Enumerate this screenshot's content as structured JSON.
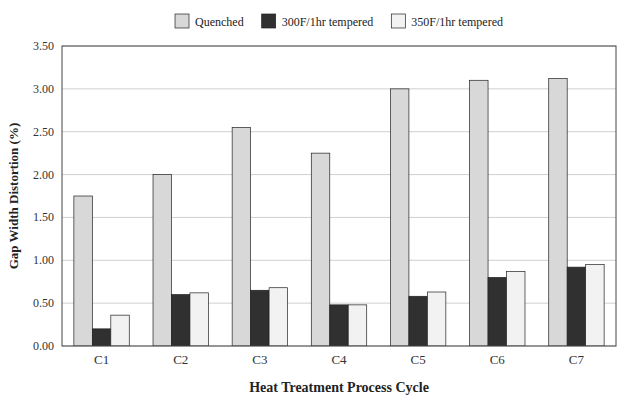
{
  "chart_data": {
    "type": "bar",
    "categories": [
      "C1",
      "C2",
      "C3",
      "C4",
      "C5",
      "C6",
      "C7"
    ],
    "series": [
      {
        "name": "Quenched",
        "color": "#d8d8d8",
        "values": [
          1.75,
          2.0,
          2.55,
          2.25,
          3.0,
          3.1,
          3.12
        ]
      },
      {
        "name": "300F/1hr tempered",
        "color": "#303030",
        "values": [
          0.2,
          0.6,
          0.65,
          0.48,
          0.58,
          0.8,
          0.92
        ]
      },
      {
        "name": "350F/1hr tempered",
        "color": "#f2f2f2",
        "values": [
          0.36,
          0.62,
          0.68,
          0.48,
          0.63,
          0.87,
          0.95
        ]
      }
    ],
    "xlabel": "Heat Treatment Process Cycle",
    "ylabel": "Gap Width Distortion (%)",
    "ylim": [
      0.0,
      3.5
    ],
    "yticks": [
      {
        "value": 0,
        "label": "0.00"
      },
      {
        "value": 0.5,
        "label": "0.50"
      },
      {
        "value": 1,
        "label": "1.00"
      },
      {
        "value": 1.5,
        "label": "1.50"
      },
      {
        "value": 2,
        "label": "2.00"
      },
      {
        "value": 2.5,
        "label": "2.50"
      },
      {
        "value": 3,
        "label": "3.00"
      },
      {
        "value": 3.5,
        "label": "3.50"
      }
    ],
    "grid": true,
    "legend": "top"
  }
}
